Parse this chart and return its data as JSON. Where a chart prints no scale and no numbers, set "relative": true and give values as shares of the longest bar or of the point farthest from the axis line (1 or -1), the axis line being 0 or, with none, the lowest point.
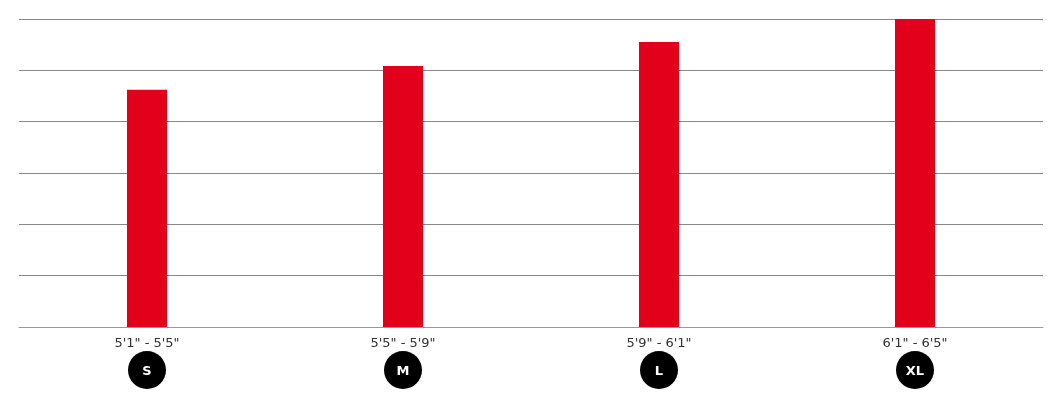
{
  "chart_data": {
    "type": "bar",
    "relative": true,
    "categories": [
      "5'1\" - 5'5\"",
      "5'5\" - 5'9\"",
      "5'9\" - 6'1\"",
      "6'1\" - 6'5\""
    ],
    "values": [
      0.77,
      0.847,
      0.925,
      1
    ],
    "color": "#e2001a",
    "grid": "y",
    "annotations": [
      "S",
      "M",
      "L",
      "XL"
    ]
  }
}
